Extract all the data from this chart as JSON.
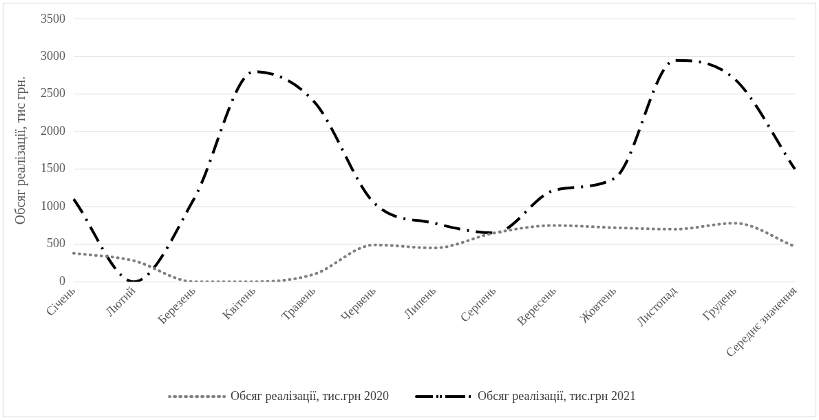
{
  "chart_data": {
    "type": "line",
    "ylabel": "Обсяг реалізації, тис грн.",
    "categories": [
      "Січень",
      "Лютий",
      "Березень",
      "Квітень",
      "Травень",
      "Червень",
      "Липень",
      "Серпень",
      "Вересень",
      "Жовтень",
      "Листопад",
      "Грудень",
      "Середнє значення"
    ],
    "series": [
      {
        "name": "Обсяг реалізації, тис.грн 2020",
        "color": "#808080",
        "line_style": "dotted",
        "values": [
          380,
          280,
          0,
          0,
          100,
          490,
          450,
          650,
          750,
          720,
          700,
          780,
          470
        ]
      },
      {
        "name": "Обсяг реалізації, тис.грн 2021",
        "color": "#000000",
        "line_style": "dashed",
        "values": [
          1100,
          0,
          1100,
          2800,
          2400,
          1050,
          780,
          650,
          1220,
          1380,
          2950,
          2700,
          1500
        ]
      }
    ],
    "ylim": [
      0,
      3500
    ],
    "yticks": [
      0,
      500,
      1000,
      1500,
      2000,
      2500,
      3000,
      3500
    ],
    "grid": "y",
    "legend": "bottom",
    "marker": "none"
  }
}
